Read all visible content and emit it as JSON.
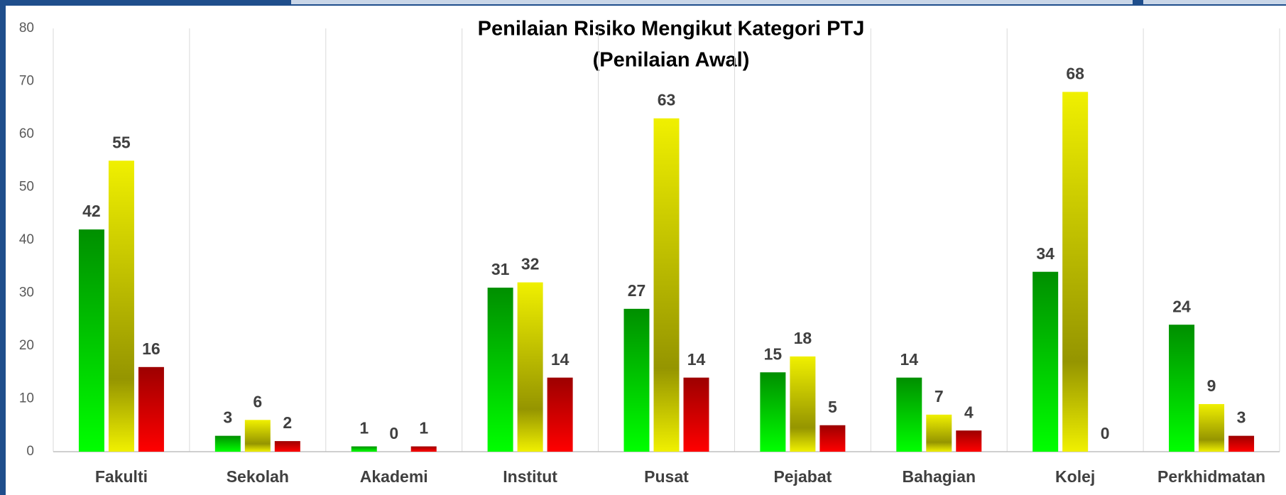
{
  "chart_data": {
    "type": "bar",
    "title": "Penilaian Risiko Mengikut Kategori PTJ",
    "subtitle": "(Penilaian Awal)",
    "categories": [
      "Fakulti",
      "Sekolah",
      "Akademi",
      "Institut",
      "Pusat",
      "Pejabat",
      "Bahagian",
      "Kolej",
      "Perkhidmatan"
    ],
    "series": [
      {
        "color": "#00cc00",
        "values": [
          42,
          3,
          1,
          31,
          27,
          15,
          14,
          34,
          24
        ]
      },
      {
        "color": "#f0f000",
        "values": [
          55,
          6,
          0,
          32,
          63,
          18,
          7,
          68,
          9
        ]
      },
      {
        "color": "#e00000",
        "values": [
          16,
          2,
          1,
          14,
          14,
          5,
          4,
          0,
          3
        ]
      }
    ],
    "ylim": [
      0,
      80
    ],
    "yticks": [
      0,
      10,
      20,
      30,
      40,
      50,
      60,
      70,
      80
    ]
  }
}
